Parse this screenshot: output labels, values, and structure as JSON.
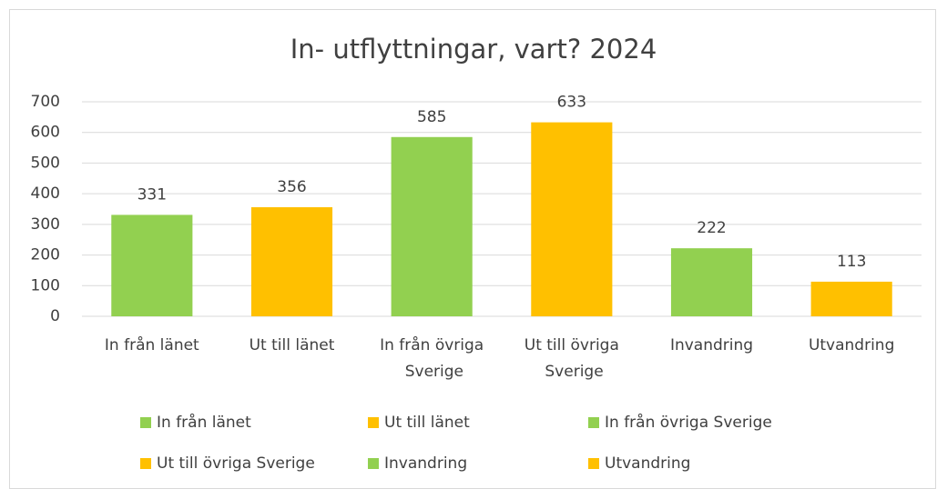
{
  "chart_data": {
    "type": "bar",
    "title": "In- utflyttningar, vart? 2024",
    "categories": [
      "In från länet",
      "Ut till länet",
      "In från övriga Sverige",
      "Ut till övriga Sverige",
      "Invandring",
      "Utvandring"
    ],
    "values": [
      331,
      356,
      585,
      633,
      222,
      113
    ],
    "colors": [
      "#92d050",
      "#ffc000",
      "#92d050",
      "#ffc000",
      "#92d050",
      "#ffc000"
    ],
    "ylim": [
      0,
      700
    ],
    "yticks": [
      0,
      100,
      200,
      300,
      400,
      500,
      600,
      700
    ],
    "grid": true,
    "legend": "bottom"
  }
}
